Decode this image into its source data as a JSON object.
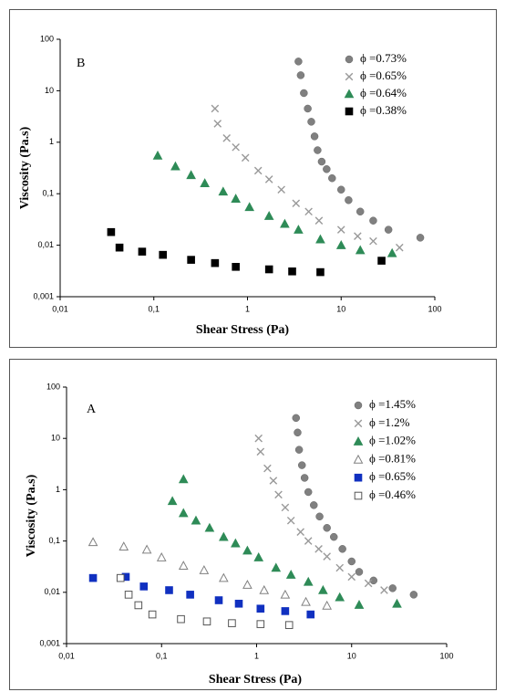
{
  "chart_data": [
    {
      "type": "scatter",
      "label": "B",
      "xlabel": "Shear Stress (Pa)",
      "ylabel": "Viscosity (Pa.s)",
      "log_x": true,
      "log_y": true,
      "xlim": [
        0.01,
        100
      ],
      "ylim": [
        0.001,
        100
      ],
      "xticks": [
        {
          "value": 0.01,
          "label": "0,01"
        },
        {
          "value": 0.1,
          "label": "0,1"
        },
        1,
        10,
        100
      ],
      "yticks": [
        {
          "value": 0.001,
          "label": "0,001"
        },
        {
          "value": 0.01,
          "label": "0,01"
        },
        {
          "value": 0.1,
          "label": "0,1"
        },
        1,
        10,
        100
      ],
      "series": [
        {
          "name": "ϕ =0.73%",
          "color": "#808080",
          "marker": "circle",
          "x": [
            3.5,
            3.7,
            4.0,
            4.4,
            4.8,
            5.2,
            5.6,
            6.2,
            7,
            8,
            10,
            12,
            16,
            22,
            32,
            70
          ],
          "values": [
            37,
            20,
            9,
            4.5,
            2.5,
            1.3,
            0.7,
            0.42,
            0.3,
            0.2,
            0.12,
            0.075,
            0.045,
            0.03,
            0.02,
            0.014
          ]
        },
        {
          "name": "ϕ =0.65%",
          "color": "#999999",
          "marker": "cross",
          "x": [
            0.45,
            0.48,
            0.6,
            0.75,
            0.95,
            1.3,
            1.7,
            2.3,
            3.3,
            4.5,
            5.8,
            10,
            15,
            22,
            42
          ],
          "values": [
            4.5,
            2.3,
            1.2,
            0.8,
            0.5,
            0.28,
            0.19,
            0.12,
            0.065,
            0.045,
            0.03,
            0.02,
            0.015,
            0.012,
            0.009
          ]
        },
        {
          "name": "ϕ =0.64%",
          "color": "#2e8b57",
          "marker": "triangle",
          "x": [
            0.11,
            0.17,
            0.25,
            0.35,
            0.55,
            0.75,
            1.05,
            1.7,
            2.5,
            3.5,
            6,
            10,
            16,
            35
          ],
          "values": [
            0.55,
            0.34,
            0.23,
            0.16,
            0.11,
            0.08,
            0.055,
            0.037,
            0.026,
            0.02,
            0.013,
            0.01,
            0.008,
            0.007
          ]
        },
        {
          "name": "ϕ =0.38%",
          "color": "#000000",
          "marker": "square",
          "x": [
            0.035,
            0.043,
            0.075,
            0.125,
            0.25,
            0.45,
            0.75,
            1.7,
            3,
            6,
            27
          ],
          "values": [
            0.018,
            0.009,
            0.0075,
            0.0065,
            0.0052,
            0.0045,
            0.0038,
            0.0034,
            0.0031,
            0.003,
            0.005
          ]
        }
      ]
    },
    {
      "type": "scatter",
      "label": "A",
      "xlabel": "Shear Stress (Pa)",
      "ylabel": "Viscosity (Pa.s)",
      "log_x": true,
      "log_y": true,
      "xlim": [
        0.01,
        100
      ],
      "ylim": [
        0.001,
        100
      ],
      "xticks": [
        {
          "value": 0.01,
          "label": "0,01"
        },
        {
          "value": 0.1,
          "label": "0,1"
        },
        1,
        10,
        100
      ],
      "yticks": [
        {
          "value": 0.001,
          "label": "0,001"
        },
        {
          "value": 0.01,
          "label": "0,01"
        },
        {
          "value": 0.1,
          "label": "0,1"
        },
        1,
        10,
        100
      ],
      "series": [
        {
          "name": "ϕ =1.45%",
          "color": "#808080",
          "marker": "circle",
          "x": [
            2.6,
            2.7,
            2.8,
            3.0,
            3.2,
            3.5,
            4,
            4.6,
            5.5,
            6.5,
            8,
            10,
            12,
            17,
            27,
            45
          ],
          "values": [
            25,
            13,
            6,
            3,
            1.7,
            0.9,
            0.5,
            0.3,
            0.18,
            0.12,
            0.07,
            0.04,
            0.025,
            0.017,
            0.012,
            0.009
          ]
        },
        {
          "name": "ϕ =1.2%",
          "color": "#999999",
          "marker": "cross",
          "x": [
            1.05,
            1.1,
            1.3,
            1.5,
            1.7,
            2.0,
            2.3,
            2.9,
            3.5,
            4.5,
            5.5,
            7.5,
            10,
            15,
            22
          ],
          "values": [
            10,
            5.5,
            2.6,
            1.5,
            0.8,
            0.45,
            0.25,
            0.15,
            0.1,
            0.07,
            0.05,
            0.03,
            0.02,
            0.015,
            0.011
          ]
        },
        {
          "name": "ϕ =1.02%",
          "color": "#2e8b57",
          "marker": "triangle",
          "x": [
            0.13,
            0.17,
            0.17,
            0.23,
            0.32,
            0.45,
            0.6,
            0.8,
            1.05,
            1.6,
            2.3,
            3.5,
            5,
            7.5,
            12,
            30
          ],
          "values": [
            0.6,
            1.6,
            0.35,
            0.25,
            0.18,
            0.12,
            0.09,
            0.065,
            0.048,
            0.03,
            0.022,
            0.016,
            0.011,
            0.008,
            0.0057,
            0.006
          ]
        },
        {
          "name": "ϕ =0.81%",
          "color": "#808080",
          "marker": "open-triangle",
          "x": [
            0.019,
            0.04,
            0.07,
            0.1,
            0.17,
            0.28,
            0.45,
            0.8,
            1.2,
            2,
            3.3,
            5.5
          ],
          "values": [
            0.095,
            0.078,
            0.068,
            0.048,
            0.033,
            0.027,
            0.019,
            0.014,
            0.011,
            0.009,
            0.0065,
            0.0055
          ]
        },
        {
          "name": "ϕ =0.65%",
          "color": "#1030c0",
          "marker": "square",
          "x": [
            0.019,
            0.042,
            0.065,
            0.12,
            0.2,
            0.4,
            0.65,
            1.1,
            2.0,
            3.7
          ],
          "values": [
            0.019,
            0.02,
            0.013,
            0.011,
            0.009,
            0.007,
            0.006,
            0.0048,
            0.0043,
            0.0037
          ]
        },
        {
          "name": "ϕ =0.46%",
          "color": "#555555",
          "marker": "open-square",
          "x": [
            0.037,
            0.045,
            0.057,
            0.08,
            0.16,
            0.3,
            0.55,
            1.1,
            2.2
          ],
          "values": [
            0.019,
            0.009,
            0.0056,
            0.0037,
            0.003,
            0.0027,
            0.0025,
            0.0024,
            0.0023
          ]
        }
      ]
    }
  ]
}
